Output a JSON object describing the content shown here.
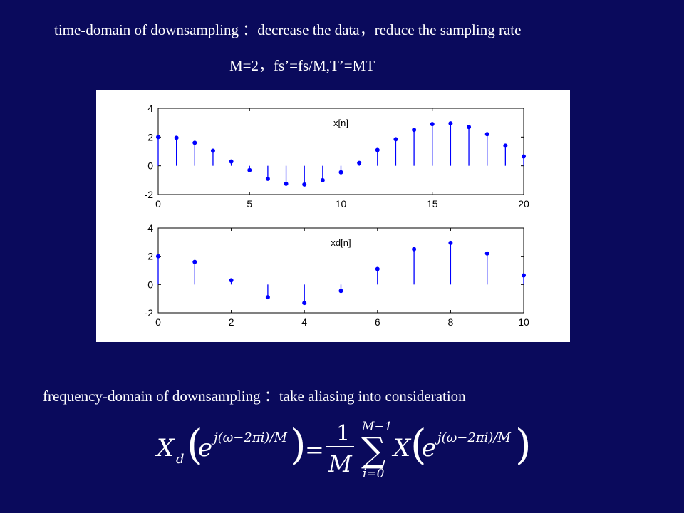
{
  "text": {
    "time_domain_line": "time-domain of downsampling ：decrease the data，reduce the sampling rate",
    "params_line": "M=2，fs’=fs/M,T’=MT",
    "freq_domain_line": "frequency-domain of downsampling ：take aliasing into consideration"
  },
  "chart_data": [
    {
      "type": "stem",
      "title": "x[n]",
      "xlim": [
        0,
        20
      ],
      "ylim": [
        -2,
        4
      ],
      "xticks": [
        0,
        5,
        10,
        15,
        20
      ],
      "yticks": [
        -2,
        0,
        2,
        4
      ],
      "x": [
        0,
        1,
        2,
        3,
        4,
        5,
        6,
        7,
        8,
        9,
        10,
        11,
        12,
        13,
        14,
        15,
        16,
        17,
        18,
        19,
        20
      ],
      "values": [
        2.0,
        1.95,
        1.6,
        1.05,
        0.3,
        -0.3,
        -0.9,
        -1.25,
        -1.3,
        -1.0,
        -0.45,
        0.2,
        1.1,
        1.85,
        2.5,
        2.9,
        2.95,
        2.7,
        2.2,
        1.4,
        0.65
      ],
      "color": "#0000ff"
    },
    {
      "type": "stem",
      "title": "xd[n]",
      "xlim": [
        0,
        10
      ],
      "ylim": [
        -2,
        4
      ],
      "xticks": [
        0,
        2,
        4,
        6,
        8,
        10
      ],
      "yticks": [
        -2,
        0,
        2,
        4
      ],
      "x": [
        0,
        1,
        2,
        3,
        4,
        5,
        6,
        7,
        8,
        9,
        10
      ],
      "values": [
        2.0,
        1.6,
        0.3,
        -0.9,
        -1.3,
        -0.45,
        1.1,
        2.5,
        2.95,
        2.2,
        0.65
      ],
      "color": "#0000ff"
    }
  ],
  "formula": {
    "lhs_X": "X",
    "lhs_sub": "d",
    "e": "e",
    "exponent": "j(ω−2πi)/M",
    "equals": "=",
    "frac_num": "1",
    "frac_den": "M",
    "sum_symbol": "∑",
    "sum_upper": "M−1",
    "sum_lower": "i=0",
    "rhs_X": "X"
  }
}
